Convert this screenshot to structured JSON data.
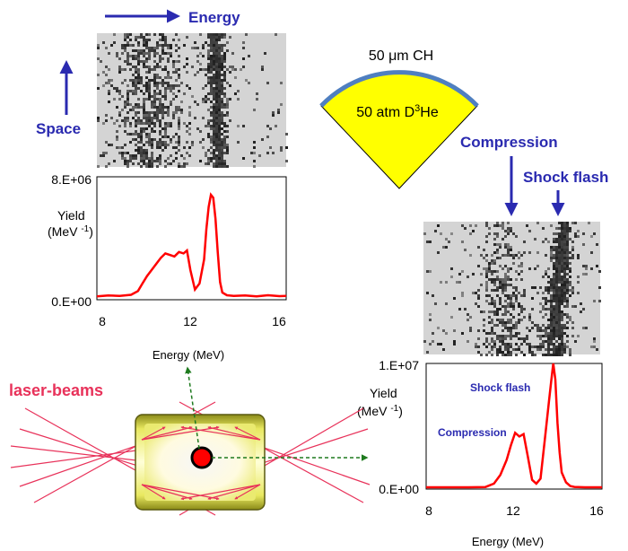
{
  "labels": {
    "energy_arrow": "Energy",
    "space_arrow": "Space",
    "capsule_shell": "50 μm CH",
    "capsule_fill_main": "50 atm D",
    "capsule_fill_sup": "3",
    "capsule_fill_end": "He",
    "compression_arrow": "Compression",
    "shock_flash_arrow": "Shock flash",
    "laser_beams": "laser-beams"
  },
  "colors": {
    "annotation_blue": "#2a2ab0",
    "spectrum_red": "#ff0000",
    "laser_pink": "#e8325a",
    "capsule_fill": "#ffff00",
    "capsule_shell": "#4f7fc0",
    "hohlraum_gold": "#e6e65a"
  },
  "chart_data": [
    {
      "type": "line",
      "ylabel_line1": "Yield",
      "ylabel_line2": "(MeV",
      "ylabel_sup": "-1",
      "ylabel_end": ")",
      "xlabel": "Energy (MeV)",
      "x_ticks": [
        "8",
        "12",
        "16"
      ],
      "y_ticks": [
        "0.E+00",
        "8.E+06"
      ],
      "xlim": [
        8,
        16.3
      ],
      "ylim": [
        0,
        8000000
      ],
      "series": [
        {
          "x": [
            8.0,
            8.5,
            9.0,
            9.5,
            9.8,
            10.0,
            10.2,
            10.4,
            10.6,
            10.8,
            11.0,
            11.2,
            11.4,
            11.6,
            11.8,
            11.95,
            12.1,
            12.3,
            12.5,
            12.7,
            12.8,
            12.9,
            13.0,
            13.1,
            13.2,
            13.3,
            13.4,
            13.5,
            13.7,
            14.0,
            14.5,
            15.0,
            15.5,
            16.0,
            16.3
          ],
          "y": [
            50000,
            100000,
            80000,
            150000,
            400000,
            900000,
            1400000,
            1800000,
            2200000,
            2600000,
            2900000,
            2800000,
            2700000,
            3000000,
            2900000,
            3100000,
            1800000,
            500000,
            900000,
            2500000,
            4500000,
            6000000,
            6800000,
            6600000,
            5200000,
            3000000,
            1000000,
            300000,
            120000,
            70000,
            100000,
            50000,
            120000,
            60000,
            80000
          ]
        }
      ]
    },
    {
      "type": "line",
      "ylabel_line1": "Yield",
      "ylabel_line2": "(MeV",
      "ylabel_sup": "-1",
      "ylabel_end": ")",
      "xlabel": "Energy (MeV)",
      "x_ticks": [
        "8",
        "12",
        "16"
      ],
      "y_ticks": [
        "0.E+00",
        "1.E+07"
      ],
      "xlim": [
        8,
        16.3
      ],
      "ylim": [
        0,
        10000000
      ],
      "annotations": [
        "Shock flash",
        "Compression"
      ],
      "series": [
        {
          "x": [
            8.0,
            9.0,
            10.0,
            10.8,
            11.2,
            11.5,
            11.8,
            12.0,
            12.2,
            12.4,
            12.6,
            12.8,
            13.0,
            13.2,
            13.4,
            13.6,
            13.8,
            13.9,
            14.0,
            14.1,
            14.2,
            14.3,
            14.4,
            14.6,
            14.8,
            15.0,
            15.5,
            16.0,
            16.3
          ],
          "y": [
            0,
            0,
            0,
            20000,
            300000,
            1000000,
            2200000,
            3400000,
            4400000,
            4100000,
            4300000,
            2500000,
            600000,
            300000,
            700000,
            3800000,
            7000000,
            8500000,
            10000000,
            8700000,
            5200000,
            2800000,
            1200000,
            400000,
            100000,
            30000,
            0,
            0,
            0
          ]
        }
      ]
    }
  ]
}
